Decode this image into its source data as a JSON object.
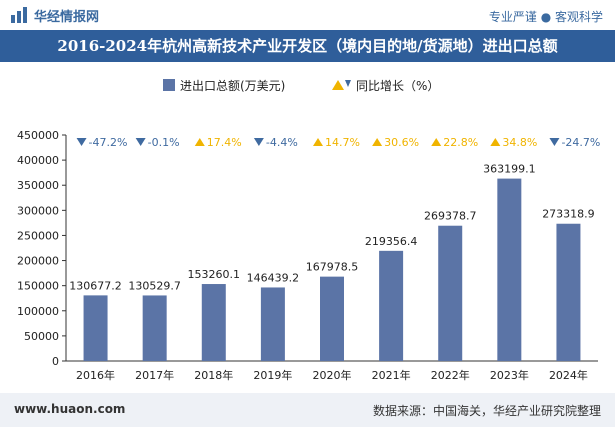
{
  "header": {
    "brand": "华经情报网",
    "tagline": "专业严谨 ● 客观科学"
  },
  "title": "2016-2024年杭州高新技术产业开发区（境内目的地/货源地）进出口总额",
  "footer": {
    "website": "www.huaon.com",
    "source": "数据来源：中国海关，华经产业研究院整理"
  },
  "colors": {
    "bar": "#5b74a6",
    "up": "#f0b400",
    "down": "#3f6aa0",
    "title_bg": "#2f5e9a"
  },
  "chart_data": {
    "type": "bar",
    "categories": [
      "2016年",
      "2017年",
      "2018年",
      "2019年",
      "2020年",
      "2021年",
      "2022年",
      "2023年",
      "2024年"
    ],
    "series": [
      {
        "name": "进出口总额(万美元)",
        "values": [
          130677.2,
          130529.7,
          153260.1,
          146439.2,
          167978.5,
          219356.4,
          269378.7,
          363199.1,
          273318.9
        ],
        "labels": [
          "130677.2",
          "130529.7",
          "153260.1",
          "146439.2",
          "167978.5",
          "219356.4",
          "269378.7",
          "363199.1",
          "273318.9"
        ]
      },
      {
        "name": "同比增长（%）",
        "values": [
          -47.2,
          -0.1,
          17.4,
          -4.4,
          14.7,
          30.6,
          22.8,
          34.8,
          -24.7
        ],
        "labels": [
          "-47.2%",
          "-0.1%",
          "17.4%",
          "-4.4%",
          "14.7%",
          "30.6%",
          "22.8%",
          "34.8%",
          "-24.7%"
        ]
      }
    ],
    "ylim": [
      0,
      450000
    ],
    "yticks": [
      0,
      50000,
      100000,
      150000,
      200000,
      250000,
      300000,
      350000,
      400000,
      450000
    ],
    "ytick_labels": [
      "0",
      "50000",
      "100000",
      "150000",
      "200000",
      "250000",
      "300000",
      "350000",
      "400000",
      "450000"
    ],
    "legend_position": "top-center",
    "grid": false
  }
}
